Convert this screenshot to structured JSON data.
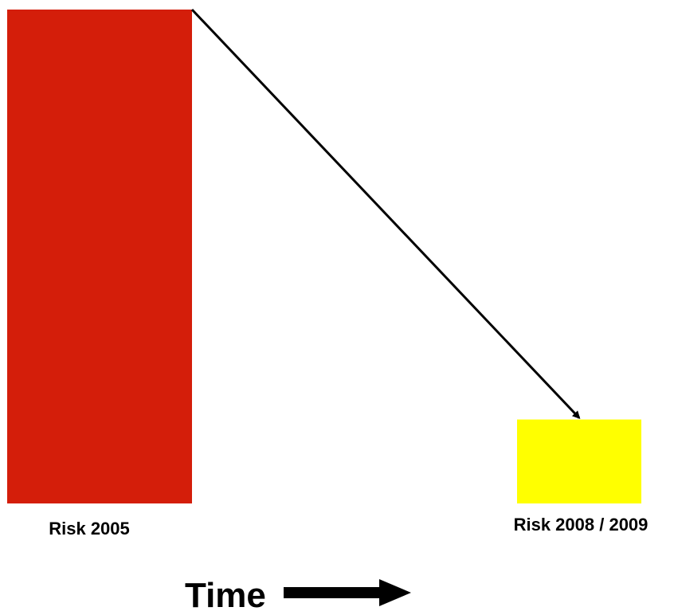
{
  "chart_data": {
    "type": "bar",
    "categories": [
      "Risk 2005",
      "Risk 2008 / 2009"
    ],
    "values": [
      100,
      17
    ],
    "ylim": [
      0,
      100
    ],
    "bar_colors": [
      "#d41e0a",
      "#ffff00"
    ],
    "arrow_color": "#000000",
    "xlabel": "Time",
    "ylabel": "",
    "title": "",
    "grid": false
  }
}
